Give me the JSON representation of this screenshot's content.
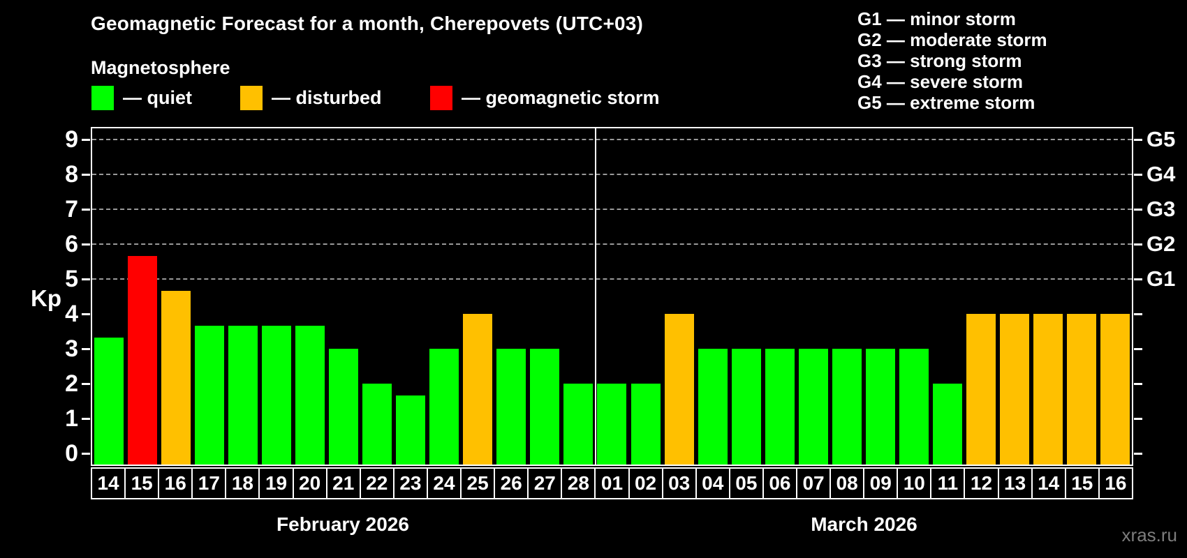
{
  "header": {
    "title": "Geomagnetic Forecast for a month, Cherepovets (UTC+03)",
    "subtitle": "Magnetosphere"
  },
  "legend": {
    "items": [
      {
        "key": "quiet",
        "label": "— quiet",
        "color": "#00ff00"
      },
      {
        "key": "disturbed",
        "label": "— disturbed",
        "color": "#ffc000"
      },
      {
        "key": "storm",
        "label": "— geomagnetic storm",
        "color": "#ff0000"
      }
    ]
  },
  "g_legend": [
    "G1 — minor storm",
    "G2 — moderate storm",
    "G3 — strong storm",
    "G4 — severe storm",
    "G5 — extreme storm"
  ],
  "watermark": "xras.ru",
  "chart_data": {
    "type": "bar",
    "title": "Geomagnetic Forecast for a month, Cherepovets (UTC+03)",
    "ylabel": "Kp",
    "ylim": [
      0,
      9
    ],
    "y_ticks": [
      0,
      1,
      2,
      3,
      4,
      5,
      6,
      7,
      8,
      9
    ],
    "gridlines_kp": [
      5,
      6,
      7,
      8,
      9
    ],
    "right_axis": [
      {
        "kp": 5,
        "label": "G1"
      },
      {
        "kp": 6,
        "label": "G2"
      },
      {
        "kp": 7,
        "label": "G3"
      },
      {
        "kp": 8,
        "label": "G4"
      },
      {
        "kp": 9,
        "label": "G5"
      }
    ],
    "status_colors": {
      "quiet": "#00ff00",
      "disturbed": "#ffc000",
      "storm": "#ff0000"
    },
    "months": [
      {
        "label": "February 2026",
        "days": [
          {
            "day": "14",
            "kp": 3.33,
            "status": "quiet"
          },
          {
            "day": "15",
            "kp": 5.67,
            "status": "storm"
          },
          {
            "day": "16",
            "kp": 4.67,
            "status": "disturbed"
          },
          {
            "day": "17",
            "kp": 3.67,
            "status": "quiet"
          },
          {
            "day": "18",
            "kp": 3.67,
            "status": "quiet"
          },
          {
            "day": "19",
            "kp": 3.67,
            "status": "quiet"
          },
          {
            "day": "20",
            "kp": 3.67,
            "status": "quiet"
          },
          {
            "day": "21",
            "kp": 3.0,
            "status": "quiet"
          },
          {
            "day": "22",
            "kp": 2.0,
            "status": "quiet"
          },
          {
            "day": "23",
            "kp": 1.67,
            "status": "quiet"
          },
          {
            "day": "24",
            "kp": 3.0,
            "status": "quiet"
          },
          {
            "day": "25",
            "kp": 4.0,
            "status": "disturbed"
          },
          {
            "day": "26",
            "kp": 3.0,
            "status": "quiet"
          },
          {
            "day": "27",
            "kp": 3.0,
            "status": "quiet"
          },
          {
            "day": "28",
            "kp": 2.0,
            "status": "quiet"
          }
        ]
      },
      {
        "label": "March 2026",
        "days": [
          {
            "day": "01",
            "kp": 2.0,
            "status": "quiet"
          },
          {
            "day": "02",
            "kp": 2.0,
            "status": "quiet"
          },
          {
            "day": "03",
            "kp": 4.0,
            "status": "disturbed"
          },
          {
            "day": "04",
            "kp": 3.0,
            "status": "quiet"
          },
          {
            "day": "05",
            "kp": 3.0,
            "status": "quiet"
          },
          {
            "day": "06",
            "kp": 3.0,
            "status": "quiet"
          },
          {
            "day": "07",
            "kp": 3.0,
            "status": "quiet"
          },
          {
            "day": "08",
            "kp": 3.0,
            "status": "quiet"
          },
          {
            "day": "09",
            "kp": 3.0,
            "status": "quiet"
          },
          {
            "day": "10",
            "kp": 3.0,
            "status": "quiet"
          },
          {
            "day": "11",
            "kp": 2.0,
            "status": "quiet"
          },
          {
            "day": "12",
            "kp": 4.0,
            "status": "disturbed"
          },
          {
            "day": "13",
            "kp": 4.0,
            "status": "disturbed"
          },
          {
            "day": "14",
            "kp": 4.0,
            "status": "disturbed"
          },
          {
            "day": "15",
            "kp": 4.0,
            "status": "disturbed"
          },
          {
            "day": "16",
            "kp": 4.0,
            "status": "disturbed"
          }
        ]
      }
    ]
  }
}
